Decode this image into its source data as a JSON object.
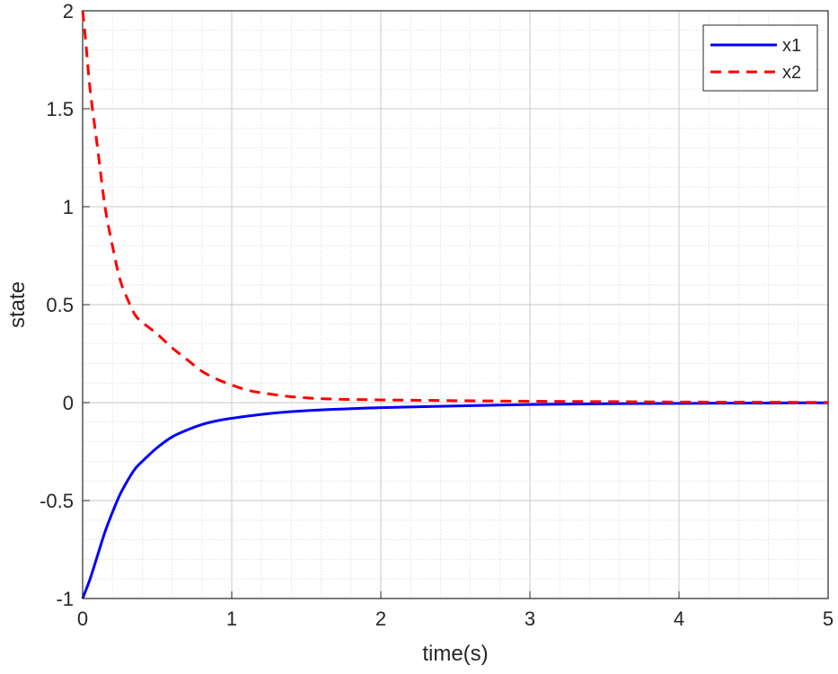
{
  "chart_data": {
    "type": "line",
    "title": "",
    "xlabel": "time(s)",
    "ylabel": "state",
    "xlim": [
      0,
      5
    ],
    "ylim": [
      -1,
      2
    ],
    "x_ticks": [
      0,
      1,
      2,
      3,
      4,
      5
    ],
    "x_tick_labels": [
      "0",
      "1",
      "2",
      "3",
      "4",
      "5"
    ],
    "y_ticks": [
      -1,
      -0.5,
      0,
      0.5,
      1,
      1.5,
      2
    ],
    "y_tick_labels": [
      "-1",
      "-0.5",
      "0",
      "0.5",
      "1",
      "1.5",
      "2"
    ],
    "grid": true,
    "minor_grid": true,
    "legend_position": "top-right",
    "series": [
      {
        "name": "x1",
        "color": "#0000ff",
        "style": "solid",
        "x": [
          0,
          0.05,
          0.1,
          0.15,
          0.2,
          0.25,
          0.3,
          0.35,
          0.4,
          0.5,
          0.6,
          0.7,
          0.8,
          0.9,
          1.0,
          1.2,
          1.4,
          1.6,
          1.8,
          2.0,
          2.5,
          3.0,
          3.5,
          4.0,
          4.5,
          5.0
        ],
        "y": [
          -1,
          -0.9,
          -0.78,
          -0.66,
          -0.56,
          -0.47,
          -0.4,
          -0.34,
          -0.3,
          -0.23,
          -0.175,
          -0.14,
          -0.112,
          -0.093,
          -0.08,
          -0.06,
          -0.046,
          -0.037,
          -0.031,
          -0.026,
          -0.017,
          -0.01,
          -0.006,
          -0.004,
          -0.002,
          -0.001
        ]
      },
      {
        "name": "x2",
        "color": "#ff0000",
        "style": "dashed",
        "x": [
          0,
          0.02,
          0.05,
          0.1,
          0.15,
          0.2,
          0.25,
          0.3,
          0.35,
          0.4,
          0.5,
          0.6,
          0.7,
          0.8,
          0.9,
          1.0,
          1.1,
          1.2,
          1.4,
          1.6,
          1.8,
          2.0,
          2.5,
          3.0,
          3.5,
          4.0,
          4.5,
          5.0
        ],
        "y": [
          2,
          1.85,
          1.6,
          1.3,
          1.0,
          0.8,
          0.63,
          0.53,
          0.45,
          0.41,
          0.35,
          0.28,
          0.22,
          0.16,
          0.12,
          0.09,
          0.065,
          0.05,
          0.03,
          0.02,
          0.016,
          0.014,
          0.01,
          0.007,
          0.005,
          0.003,
          0.002,
          0.001
        ]
      }
    ]
  }
}
